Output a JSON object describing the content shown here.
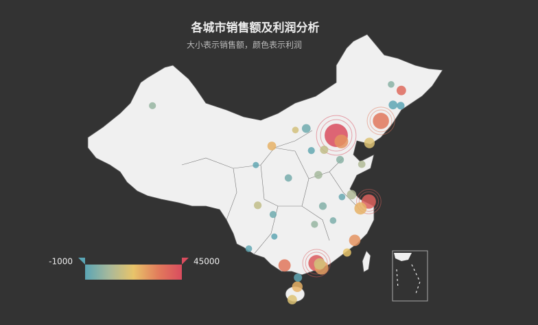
{
  "chart_data": {
    "type": "map",
    "title": "各城市销售额及利润分析",
    "subtitle": "大小表示销售额，颜色表示利润",
    "visual_map": {
      "min": -1000,
      "max": 45000,
      "colors": [
        "#5aa5b5",
        "#a8b99b",
        "#e8c46a",
        "#e27d5c",
        "#d94c5e"
      ]
    },
    "points": [
      {
        "lon": 116.4,
        "lat": 39.9,
        "sales": 140000,
        "profit": 45000
      },
      {
        "lon": 117.2,
        "lat": 39.1,
        "sales": 40000,
        "profit": 30000
      },
      {
        "lon": 123.4,
        "lat": 41.8,
        "sales": 60000,
        "profit": 35000
      },
      {
        "lon": 121.6,
        "lat": 38.9,
        "sales": 20000,
        "profit": 20000
      },
      {
        "lon": 126.6,
        "lat": 45.8,
        "sales": 15000,
        "profit": 38000
      },
      {
        "lon": 125.3,
        "lat": 43.9,
        "sales": 12000,
        "profit": -500
      },
      {
        "lon": 121.5,
        "lat": 31.2,
        "sales": 45000,
        "profit": 40000
      },
      {
        "lon": 120.2,
        "lat": 30.3,
        "sales": 30000,
        "profit": 25000
      },
      {
        "lon": 118.8,
        "lat": 32.1,
        "sales": 15000,
        "profit": 12000
      },
      {
        "lon": 119.3,
        "lat": 26.1,
        "sales": 25000,
        "profit": 30000
      },
      {
        "lon": 118.1,
        "lat": 24.5,
        "sales": 10000,
        "profit": 22000
      },
      {
        "lon": 113.3,
        "lat": 23.1,
        "sales": 60000,
        "profit": 42000
      },
      {
        "lon": 114.1,
        "lat": 22.5,
        "sales": 40000,
        "profit": 28000
      },
      {
        "lon": 113.8,
        "lat": 23.0,
        "sales": 25000,
        "profit": 18000
      },
      {
        "lon": 108.3,
        "lat": 22.8,
        "sales": 30000,
        "profit": 35000
      },
      {
        "lon": 110.3,
        "lat": 20.0,
        "sales": 20000,
        "profit": 25000
      },
      {
        "lon": 109.5,
        "lat": 18.3,
        "sales": 15000,
        "profit": 20000
      },
      {
        "lon": 110.4,
        "lat": 21.2,
        "sales": 10000,
        "profit": -200
      },
      {
        "lon": 102.7,
        "lat": 25.0,
        "sales": 5000,
        "profit": 0
      },
      {
        "lon": 104.1,
        "lat": 30.7,
        "sales": 8000,
        "profit": 15000
      },
      {
        "lon": 106.5,
        "lat": 29.5,
        "sales": 6000,
        "profit": 2000
      },
      {
        "lon": 114.3,
        "lat": 30.6,
        "sales": 8000,
        "profit": 5000
      },
      {
        "lon": 113.0,
        "lat": 28.2,
        "sales": 6000,
        "profit": 8000
      },
      {
        "lon": 108.9,
        "lat": 34.3,
        "sales": 7000,
        "profit": 3000
      },
      {
        "lon": 113.6,
        "lat": 34.7,
        "sales": 9000,
        "profit": 10000
      },
      {
        "lon": 117.0,
        "lat": 36.7,
        "sales": 8000,
        "profit": 6000
      },
      {
        "lon": 120.4,
        "lat": 36.1,
        "sales": 7000,
        "profit": 12000
      },
      {
        "lon": 114.5,
        "lat": 38.0,
        "sales": 10000,
        "profit": 15000
      },
      {
        "lon": 112.5,
        "lat": 37.9,
        "sales": 6000,
        "profit": 500
      },
      {
        "lon": 111.7,
        "lat": 40.8,
        "sales": 12000,
        "profit": 2000
      },
      {
        "lon": 110.0,
        "lat": 40.6,
        "sales": 5000,
        "profit": 18000
      },
      {
        "lon": 106.3,
        "lat": 38.5,
        "sales": 12000,
        "profit": 25000
      },
      {
        "lon": 103.8,
        "lat": 36.0,
        "sales": 4000,
        "profit": 0
      },
      {
        "lon": 87.6,
        "lat": 43.8,
        "sales": 6000,
        "profit": 8000
      },
      {
        "lon": 117.3,
        "lat": 31.8,
        "sales": 5000,
        "profit": 1000
      },
      {
        "lon": 115.9,
        "lat": 28.7,
        "sales": 5000,
        "profit": 4000
      },
      {
        "lon": 106.7,
        "lat": 26.6,
        "sales": 4000,
        "profit": -300
      },
      {
        "lon": 125.0,
        "lat": 46.6,
        "sales": 5000,
        "profit": 6000
      },
      {
        "lon": 126.5,
        "lat": 43.8,
        "sales": 8000,
        "profit": -800
      }
    ]
  }
}
